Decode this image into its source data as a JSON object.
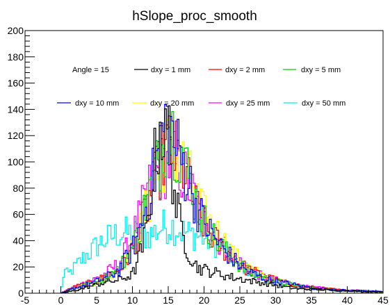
{
  "chart_data": {
    "type": "line",
    "title": "hSlope_proc_smooth",
    "xlabel": "",
    "ylabel": "",
    "xlim": [
      -5,
      45
    ],
    "ylim": [
      0,
      200
    ],
    "x_ticks": [
      "-5",
      "0",
      "5",
      "10",
      "15",
      "20",
      "25",
      "30",
      "35",
      "40",
      "45"
    ],
    "y_ticks": [
      "0",
      "20",
      "40",
      "60",
      "80",
      "100",
      "120",
      "140",
      "160",
      "180",
      "200"
    ],
    "legend_header": "Angle = 15",
    "grid": false,
    "legend_position": "top",
    "series": [
      {
        "name": "dxy = 1 mm",
        "color": "#000000",
        "x": [
          0,
          2,
          4,
          6,
          8,
          10,
          11,
          12,
          13,
          14,
          14.5,
          15,
          15.5,
          16,
          17,
          18,
          19,
          20,
          22,
          24,
          26,
          28,
          30,
          32,
          34,
          36,
          38,
          40,
          42,
          45
        ],
        "y": [
          0,
          2,
          5,
          8,
          10,
          14,
          28,
          48,
          95,
          133,
          110,
          128,
          100,
          70,
          45,
          30,
          20,
          18,
          15,
          12,
          10,
          8,
          6,
          4,
          3,
          3,
          2,
          2,
          1,
          1
        ]
      },
      {
        "name": "dxy = 2 mm",
        "color": "#ff0000",
        "x": [
          0,
          2,
          4,
          6,
          8,
          10,
          11,
          12,
          13,
          14,
          15,
          16,
          17,
          18,
          19,
          20,
          22,
          24,
          26,
          28,
          30,
          32,
          34,
          36,
          38,
          40,
          42,
          45
        ],
        "y": [
          0,
          5,
          8,
          12,
          18,
          32,
          48,
          65,
          82,
          100,
          112,
          105,
          98,
          80,
          65,
          52,
          38,
          27,
          18,
          14,
          10,
          7,
          5,
          4,
          3,
          2,
          2,
          1
        ]
      },
      {
        "name": "dxy = 5 mm",
        "color": "#00cc00",
        "x": [
          0,
          2,
          4,
          6,
          8,
          10,
          11,
          12,
          13,
          14,
          15,
          16,
          17,
          18,
          19,
          20,
          22,
          24,
          26,
          28,
          30,
          32,
          34,
          36,
          38,
          40,
          42,
          45
        ],
        "y": [
          0,
          4,
          7,
          11,
          18,
          34,
          50,
          70,
          88,
          108,
          130,
          118,
          105,
          85,
          68,
          55,
          38,
          26,
          17,
          12,
          9,
          7,
          5,
          3,
          3,
          2,
          2,
          1
        ]
      },
      {
        "name": "dxy = 10 mm",
        "color": "#0000ff",
        "x": [
          0,
          2,
          4,
          6,
          8,
          10,
          11,
          12,
          13,
          14,
          15,
          16,
          17,
          18,
          19,
          20,
          22,
          24,
          26,
          28,
          30,
          32,
          34,
          36,
          38,
          40,
          42,
          45
        ],
        "y": [
          0,
          4,
          7,
          11,
          17,
          33,
          48,
          68,
          90,
          120,
          132,
          112,
          100,
          84,
          66,
          54,
          38,
          26,
          17,
          12,
          9,
          7,
          5,
          3,
          3,
          2,
          2,
          1
        ]
      },
      {
        "name": "dxy = 20 mm",
        "color": "#ffff00",
        "x": [
          0,
          2,
          4,
          6,
          8,
          10,
          11,
          12,
          13,
          14,
          15,
          16,
          17,
          18,
          19,
          20,
          22,
          24,
          26,
          28,
          30,
          32,
          34,
          36,
          38,
          40,
          42,
          45
        ],
        "y": [
          0,
          4,
          7,
          11,
          18,
          33,
          47,
          64,
          82,
          100,
          110,
          108,
          100,
          88,
          72,
          60,
          45,
          30,
          20,
          14,
          10,
          7,
          5,
          4,
          3,
          2,
          2,
          1
        ]
      },
      {
        "name": "dxy = 25 mm",
        "color": "#ff00ff",
        "x": [
          0,
          2,
          4,
          6,
          8,
          10,
          11,
          12,
          13,
          14,
          15,
          16,
          17,
          18,
          19,
          20,
          22,
          24,
          26,
          28,
          30,
          32,
          34,
          36,
          38,
          40,
          42,
          45
        ],
        "y": [
          0,
          5,
          9,
          14,
          22,
          42,
          58,
          75,
          88,
          95,
          100,
          98,
          92,
          80,
          68,
          55,
          40,
          28,
          19,
          13,
          10,
          7,
          5,
          4,
          3,
          2,
          2,
          1
        ]
      },
      {
        "name": "dxy = 50 mm",
        "color": "#00eeee",
        "x": [
          0,
          0.5,
          1,
          2,
          3,
          4,
          5,
          6,
          7,
          8,
          9,
          10,
          11,
          12,
          13,
          14,
          15,
          16,
          17,
          18,
          19,
          20,
          21,
          22,
          23,
          24,
          25,
          26,
          27,
          28,
          30,
          32,
          34,
          36,
          38,
          40,
          42,
          45
        ],
        "y": [
          0,
          18,
          14,
          20,
          26,
          31,
          36,
          40,
          43,
          45,
          46,
          45,
          45,
          44,
          46,
          50,
          52,
          50,
          47,
          45,
          44,
          42,
          40,
          36,
          32,
          27,
          22,
          18,
          14,
          12,
          8,
          6,
          5,
          4,
          3,
          2,
          2,
          1
        ]
      }
    ]
  }
}
